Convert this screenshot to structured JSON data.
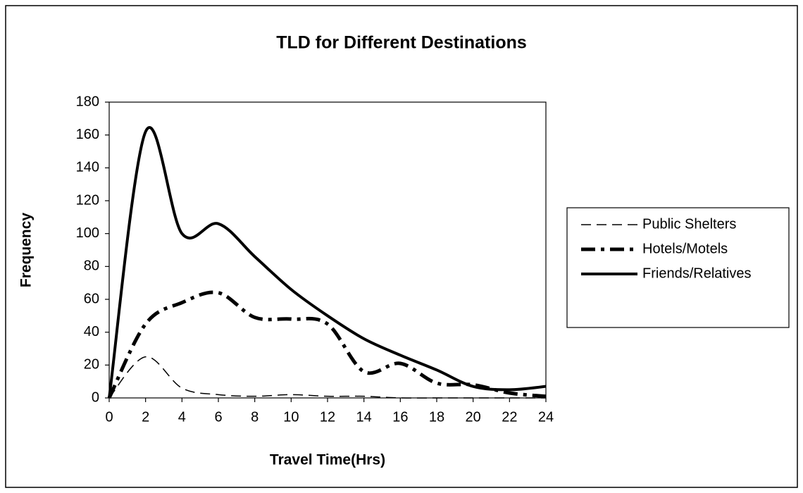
{
  "chart_data": {
    "type": "line",
    "title": "TLD for Different Destinations",
    "x_label": "Travel Time(Hrs)",
    "y_label": "Frequency",
    "x": [
      0,
      2,
      4,
      6,
      8,
      10,
      12,
      14,
      16,
      18,
      20,
      22,
      24
    ],
    "series": [
      {
        "name": "Public Shelters",
        "color": "#000000",
        "values": [
          0,
          25,
          6,
          2,
          1,
          2,
          1,
          1,
          0,
          0,
          0,
          0,
          0
        ]
      },
      {
        "name": "Hotels/Motels",
        "color": "#000000",
        "values": [
          0,
          45,
          58,
          64,
          49,
          48,
          45,
          16,
          21,
          9,
          8,
          3,
          1
        ]
      },
      {
        "name": "Friends/Relatives",
        "color": "#000000",
        "values": [
          0,
          162,
          100,
          106,
          86,
          66,
          50,
          36,
          26,
          17,
          7,
          5,
          7
        ]
      }
    ],
    "xlim": [
      0,
      24
    ],
    "xticks": [
      0,
      2,
      4,
      6,
      8,
      10,
      12,
      14,
      16,
      18,
      20,
      22,
      24
    ],
    "ylim": [
      0,
      180
    ],
    "yticks": [
      0,
      20,
      40,
      60,
      80,
      100,
      120,
      140,
      160,
      180
    ],
    "legend": "right"
  }
}
